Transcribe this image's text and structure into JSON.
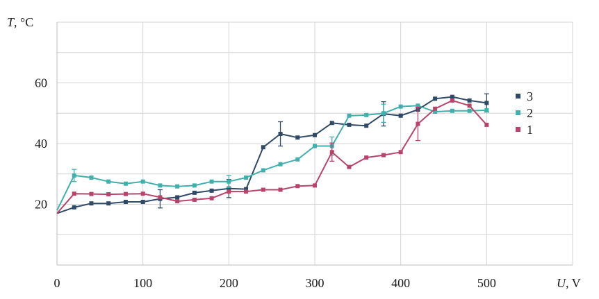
{
  "chart_data": {
    "type": "line",
    "xlabel_var": "U",
    "xlabel_unit": ", V",
    "ylabel_var": "T",
    "ylabel_unit": ", °C",
    "xlim": [
      0,
      600
    ],
    "ylim": [
      0,
      80
    ],
    "x_ticks": [
      0,
      100,
      200,
      300,
      400,
      500
    ],
    "y_ticks": [
      20,
      40,
      60
    ],
    "y_grid": [
      10,
      20,
      30,
      40,
      50,
      60,
      70,
      80
    ],
    "grid": true,
    "legend_position": "right",
    "series": [
      {
        "name": "3",
        "color": "#2f4a66",
        "x": [
          0,
          20,
          40,
          60,
          80,
          100,
          120,
          140,
          160,
          180,
          200,
          220,
          240,
          260,
          280,
          300,
          320,
          340,
          360,
          380,
          400,
          420,
          440,
          460,
          480,
          500
        ],
        "y": [
          17,
          19,
          20.3,
          20.3,
          20.8,
          20.8,
          21.8,
          22.3,
          23.8,
          24.5,
          25.2,
          25,
          38.8,
          43.2,
          42,
          42.8,
          46.8,
          46.2,
          45.9,
          49.8,
          49.2,
          51.2,
          54.8,
          55.4,
          54.2,
          53.4
        ],
        "err": [
          null,
          null,
          null,
          null,
          null,
          null,
          3,
          null,
          null,
          null,
          3,
          null,
          null,
          4,
          null,
          null,
          null,
          null,
          null,
          4,
          null,
          null,
          null,
          null,
          null,
          3
        ]
      },
      {
        "name": "2",
        "color": "#3fb0ac",
        "x": [
          0,
          20,
          40,
          60,
          80,
          100,
          120,
          140,
          160,
          180,
          200,
          220,
          240,
          260,
          280,
          300,
          320,
          340,
          360,
          380,
          400,
          420,
          440,
          460,
          480,
          500
        ],
        "y": [
          18,
          29.5,
          28.8,
          27.5,
          26.8,
          27.5,
          26.2,
          25.9,
          26.2,
          27.5,
          27.5,
          28.8,
          31.2,
          33.2,
          34.8,
          39.2,
          39.2,
          49.2,
          49.4,
          50,
          52.2,
          52.5,
          50.5,
          50.8,
          50.8,
          51
        ],
        "err": [
          null,
          2,
          null,
          null,
          null,
          null,
          null,
          null,
          null,
          null,
          2,
          null,
          null,
          null,
          null,
          null,
          3,
          null,
          null,
          3,
          null,
          null,
          null,
          null,
          null,
          null
        ]
      },
      {
        "name": "1",
        "color": "#b8446a",
        "x": [
          0,
          20,
          40,
          60,
          80,
          100,
          120,
          140,
          160,
          180,
          200,
          220,
          240,
          260,
          280,
          300,
          320,
          340,
          360,
          380,
          400,
          420,
          440,
          460,
          480,
          500
        ],
        "y": [
          17,
          23.5,
          23.4,
          23.3,
          23.4,
          23.5,
          22.3,
          21,
          21.5,
          22,
          24.2,
          24.2,
          24.8,
          24.8,
          26,
          26.2,
          37.2,
          32.3,
          35.4,
          36.2,
          37.2,
          46.5,
          51.5,
          54.2,
          52.5,
          46.2
        ],
        "err": [
          null,
          null,
          null,
          null,
          null,
          null,
          null,
          null,
          null,
          null,
          null,
          null,
          null,
          null,
          null,
          null,
          3,
          null,
          null,
          null,
          null,
          5.5,
          null,
          null,
          null,
          null
        ]
      }
    ]
  }
}
